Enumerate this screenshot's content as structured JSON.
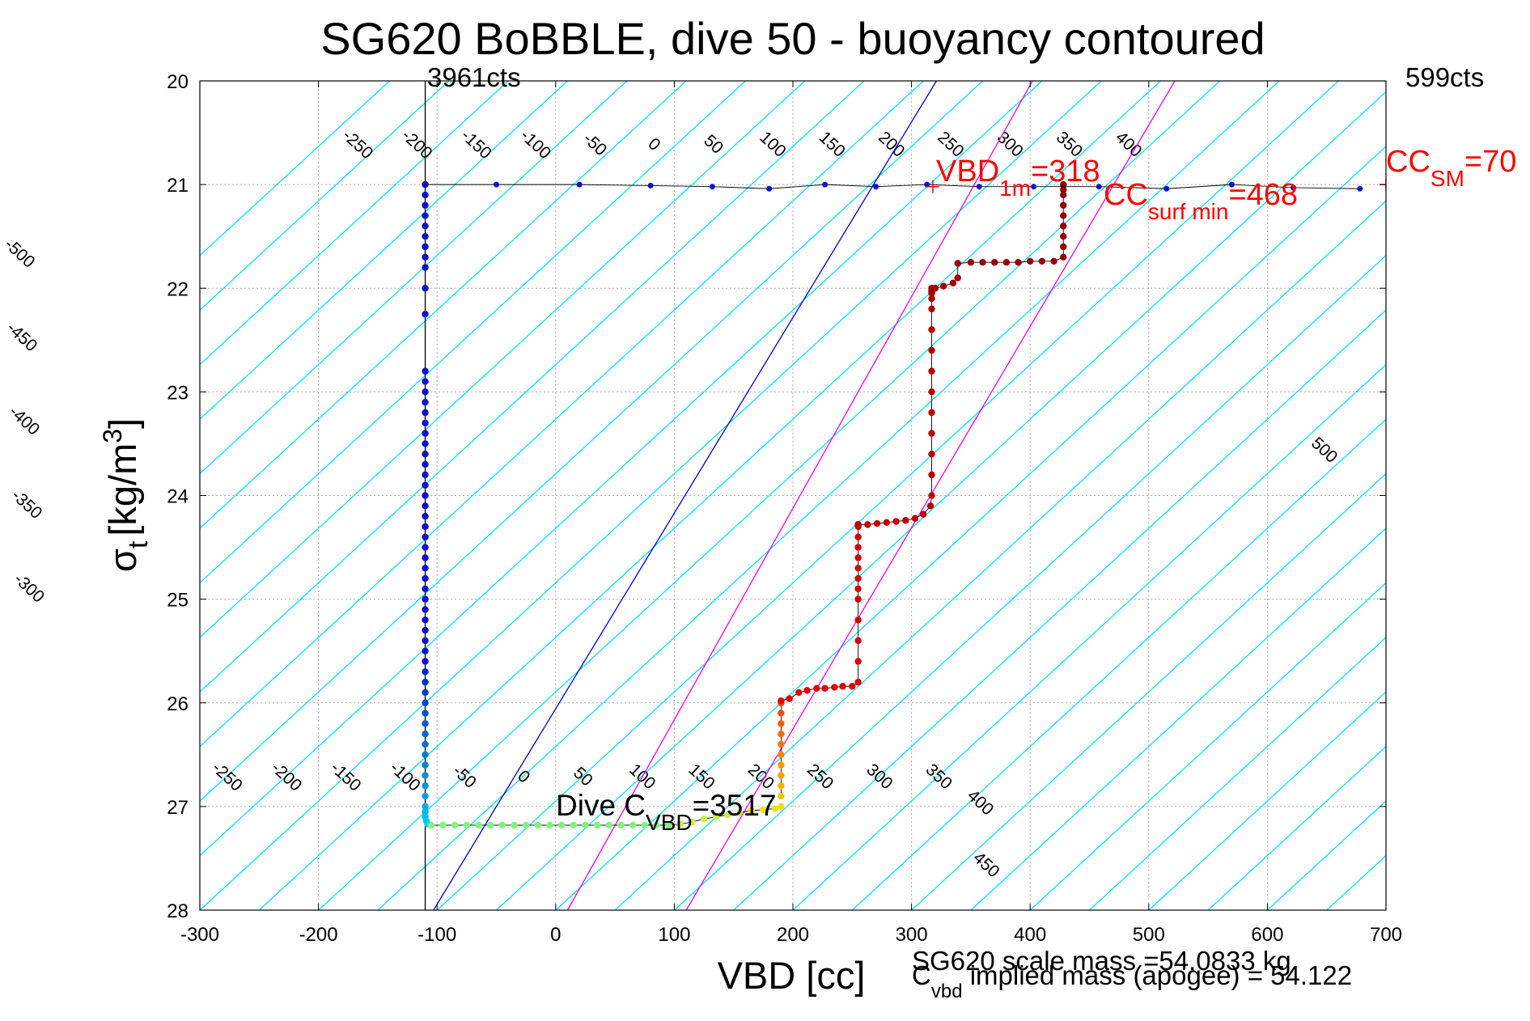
{
  "chart_data": {
    "type": "scatter",
    "title": "SG620 BoBBLE, dive 50 - buoyancy contoured",
    "xlabel": "VBD [cc]",
    "ylabel_main": "σ",
    "ylabel_sub": "t",
    "ylabel_unit": "[kg/m",
    "ylabel_sup": "3",
    "ylabel_close": "]",
    "xlim": [
      -300,
      700
    ],
    "ylim": [
      20,
      28
    ],
    "y_reversed": true,
    "grid": true,
    "x_ticks": [
      "-300",
      "-200",
      "-100",
      "0",
      "100",
      "200",
      "300",
      "400",
      "500",
      "600",
      "700"
    ],
    "y_ticks": [
      "20",
      "21",
      "22",
      "23",
      "24",
      "25",
      "26",
      "27",
      "28"
    ],
    "colors": {
      "grid": "#aaaaaa",
      "buoyancy_contours": "#00e5ee",
      "neutral_contour": "#0000cc",
      "magenta_lines": "#ee00ee",
      "descent": "#0000cc",
      "ascent": "#aa0000",
      "annotation_red": "#ff0000"
    },
    "top_left_label": "3961cts",
    "top_right_label": "599cts",
    "contour_slope_cc_per_sigma": 95,
    "contour_upper_labels": [
      "-500",
      "-450",
      "-400",
      "-350",
      "-300",
      "-250",
      "-200",
      "-150",
      "-100",
      "-50",
      "0",
      "50",
      "100",
      "150",
      "200",
      "250",
      "300",
      "350",
      "400"
    ],
    "contour_upper_values": [
      -500,
      -450,
      -400,
      -350,
      -300,
      -250,
      -200,
      -150,
      -100,
      -50,
      0,
      50,
      100,
      150,
      200,
      250,
      300,
      350,
      400
    ],
    "contour_lower_labels": [
      "-250",
      "-200",
      "-150",
      "-100",
      "-50",
      "0",
      "50",
      "100",
      "150",
      "200",
      "250",
      "300",
      "350",
      "400",
      "450",
      "500"
    ],
    "contour_lower_values": [
      -250,
      -200,
      -150,
      -100,
      -50,
      0,
      50,
      100,
      150,
      200,
      250,
      300,
      350,
      400,
      450,
      500
    ],
    "vertical_line_vbd": -110,
    "neutral_line": {
      "x": [
        -103,
        321
      ],
      "y": [
        28,
        20
      ]
    },
    "magenta_lines": [
      {
        "x": [
          10,
          402
        ],
        "y": [
          28,
          20
        ]
      },
      {
        "x": [
          110,
          522
        ],
        "y": [
          28,
          20
        ]
      }
    ],
    "series": [
      {
        "name": "descent",
        "x": [
          -110,
          -110,
          -110,
          -110,
          -110,
          -110,
          -110,
          -110,
          -110,
          -110,
          -110,
          -110,
          -110,
          -110,
          -110,
          -110,
          -110,
          -110,
          -110,
          -110,
          -110,
          -110,
          -110,
          -110,
          -110,
          -110,
          -110,
          -110,
          -110,
          -110,
          -110,
          -110,
          -110,
          -110,
          -110,
          -110,
          -110,
          -110,
          -110,
          -110
        ],
        "y": [
          21.0,
          21.1,
          21.2,
          21.3,
          21.4,
          21.5,
          21.6,
          21.7,
          21.8,
          22.0,
          22.25,
          22.8,
          22.9,
          23.0,
          23.1,
          23.2,
          23.3,
          23.4,
          23.5,
          23.6,
          23.7,
          23.8,
          23.9,
          24.0,
          24.1,
          24.2,
          24.3,
          24.4,
          24.5,
          24.6,
          24.7,
          24.8,
          24.9,
          25.0,
          25.1,
          25.2,
          25.3,
          25.4,
          25.5,
          25.6
        ]
      },
      {
        "name": "descent_lower",
        "x": [
          -110,
          -110,
          -110,
          -110,
          -110,
          -110,
          -110,
          -110,
          -110,
          -110,
          -110,
          -110,
          -110,
          -110,
          -110,
          -110,
          -109,
          -108
        ],
        "y": [
          25.7,
          25.8,
          25.9,
          26.0,
          26.1,
          26.2,
          26.3,
          26.4,
          26.5,
          26.6,
          26.7,
          26.8,
          26.9,
          27.0,
          27.05,
          27.1,
          27.14,
          27.17
        ]
      },
      {
        "name": "bottom",
        "x": [
          -105,
          -95,
          -85,
          -75,
          -65,
          -55,
          -45,
          -35,
          -25,
          -15,
          -5,
          5,
          15,
          25,
          35,
          45,
          55,
          65,
          75,
          85,
          95,
          105,
          115,
          125,
          135,
          145,
          155,
          165,
          175,
          185,
          190
        ],
        "y": [
          27.18,
          27.18,
          27.18,
          27.18,
          27.18,
          27.18,
          27.18,
          27.18,
          27.18,
          27.18,
          27.18,
          27.18,
          27.18,
          27.18,
          27.18,
          27.18,
          27.18,
          27.18,
          27.18,
          27.18,
          27.18,
          27.17,
          27.15,
          27.12,
          27.1,
          27.08,
          27.06,
          27.04,
          27.03,
          27.02,
          27.0
        ]
      },
      {
        "name": "ascent_orange",
        "x": [
          190,
          190,
          190,
          190,
          190,
          190,
          190,
          190,
          190,
          190
        ],
        "y": [
          26.0,
          26.1,
          26.2,
          26.3,
          26.4,
          26.5,
          26.6,
          26.7,
          26.8,
          26.9
        ]
      },
      {
        "name": "ascent",
        "x": [
          190,
          197,
          205,
          212,
          220,
          227,
          235,
          242,
          250,
          255,
          255,
          255,
          255,
          255,
          255,
          255,
          255,
          255,
          255,
          255,
          255,
          255,
          255,
          255,
          255,
          255,
          255,
          255,
          255,
          255,
          263,
          271,
          279,
          287,
          295,
          303,
          310,
          316,
          317,
          317,
          317,
          317,
          317,
          317,
          317,
          317,
          317,
          317,
          317,
          317,
          317,
          317,
          317,
          317,
          317,
          317,
          317,
          320,
          327,
          335,
          339,
          339,
          350,
          360,
          370,
          380,
          390,
          400,
          410,
          420,
          428,
          428,
          428,
          428,
          428,
          428,
          428,
          428,
          428
        ],
        "y": [
          25.98,
          25.96,
          25.9,
          25.88,
          25.86,
          25.86,
          25.85,
          25.84,
          25.84,
          25.8,
          25.6,
          25.4,
          25.2,
          25.0,
          24.9,
          24.8,
          24.7,
          24.6,
          24.5,
          24.4,
          24.3,
          24.28,
          24.28,
          24.28,
          24.28,
          24.28,
          24.28,
          24.28,
          24.28,
          24.28,
          24.28,
          24.27,
          24.26,
          24.25,
          24.24,
          24.22,
          24.18,
          24.1,
          24.0,
          23.8,
          23.6,
          23.4,
          23.2,
          23.0,
          22.8,
          22.6,
          22.4,
          22.2,
          22.1,
          22.05,
          22.04,
          22.03,
          22.02,
          22.02,
          22.02,
          22.02,
          22.0,
          22.0,
          21.98,
          21.95,
          21.9,
          21.76,
          21.75,
          21.75,
          21.75,
          21.75,
          21.75,
          21.74,
          21.74,
          21.74,
          21.7,
          21.6,
          21.5,
          21.4,
          21.3,
          21.2,
          21.1,
          21.05,
          21.0
        ]
      },
      {
        "name": "surface",
        "x": [
          -110,
          -50,
          20,
          80,
          132,
          180,
          227,
          270,
          313,
          357,
          403,
          458,
          515,
          570,
          622,
          678
        ],
        "y": [
          21.0,
          21.0,
          21.0,
          21.01,
          21.02,
          21.04,
          21.0,
          21.02,
          21.0,
          21.02,
          21.02,
          21.02,
          21.04,
          21.0,
          21.03,
          21.04
        ]
      }
    ],
    "annotations": {
      "vbd1m_main": "VBD",
      "vbd1m_sub": "1m",
      "vbd1m_rest": "=318",
      "ccsurf_main": "CC",
      "ccsurf_sub": "surf min",
      "ccsurf_rest": "=468",
      "ccsm_main": "CC",
      "ccsm_sub": "SM",
      "ccsm_rest": "=70",
      "dive_main": "Dive C",
      "dive_sub": "VBD",
      "dive_rest": "=3517",
      "scale_mass": "SG620 scale mass =54.0833 kg",
      "implied_main": "C",
      "implied_sub": "vbd",
      "implied_rest": " implied mass (apogee) = 54.122"
    }
  }
}
